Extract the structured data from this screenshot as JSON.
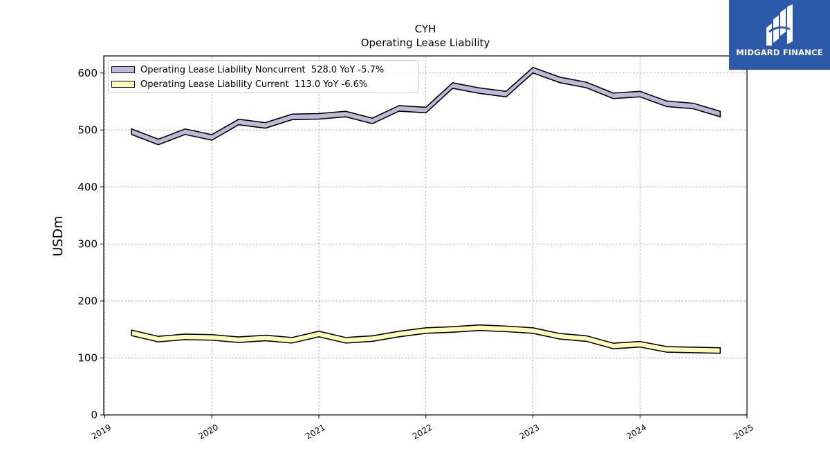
{
  "logo": {
    "text": "MIDGARD FINANCE",
    "icon": "midgard-logo-icon"
  },
  "chart_data": {
    "type": "area",
    "title": "CYH",
    "subtitle": "Operating Lease Liability",
    "ylabel": "USDm",
    "xlabel": "",
    "xlim": [
      2018.99,
      2025.0
    ],
    "ylim": [
      0,
      630
    ],
    "yticks": [
      0,
      100,
      200,
      300,
      400,
      500,
      600
    ],
    "xticks": [
      "2019",
      "2020",
      "2021",
      "2022",
      "2023",
      "2024",
      "2025"
    ],
    "grid": true,
    "legend_position": "top-left",
    "band_width": 8,
    "x": [
      2019.25,
      2019.5,
      2019.75,
      2020.0,
      2020.25,
      2020.5,
      2020.75,
      2021.0,
      2021.25,
      2021.5,
      2021.75,
      2022.0,
      2022.25,
      2022.5,
      2022.75,
      2023.0,
      2023.25,
      2023.5,
      2023.75,
      2024.0,
      2024.25,
      2024.5,
      2024.75
    ],
    "series": [
      {
        "name": "Operating Lease Liability Noncurrent  528.0 YoY -5.7%",
        "color": "#bcb9d9",
        "values": [
          497,
          479,
          497,
          487,
          514,
          508,
          523,
          524,
          528,
          516,
          538,
          535,
          578,
          569,
          563,
          605,
          588,
          579,
          560,
          563,
          546,
          542,
          528
        ]
      },
      {
        "name": "Operating Lease Liability Current  113.0 YoY -6.6%",
        "color": "#ffffb8",
        "values": [
          144,
          133,
          137,
          136,
          132,
          135,
          131,
          142,
          131,
          134,
          142,
          148,
          150,
          153,
          151,
          148,
          138,
          134,
          121,
          124,
          115,
          114,
          113
        ]
      }
    ]
  }
}
